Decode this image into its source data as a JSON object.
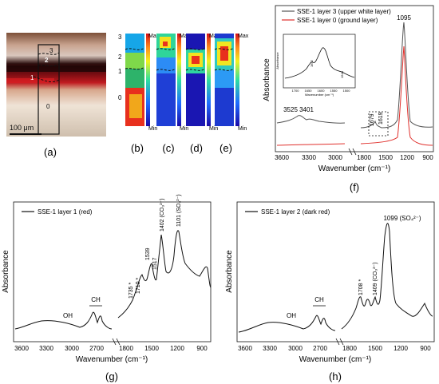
{
  "panels": {
    "a": {
      "label": "(a)",
      "scale_bar": "100 μm",
      "layer_labels": [
        "3",
        "2",
        "1",
        "0"
      ]
    },
    "maps": {
      "labels": [
        "(b)",
        "(c)",
        "(d)",
        "(e)"
      ],
      "max_label": "Max",
      "min_label": "Min",
      "axis_ticks": [
        "3",
        "2",
        "1",
        "0"
      ]
    },
    "f": {
      "label": "(f)"
    },
    "g": {
      "label": "(g)"
    },
    "h": {
      "label": "(h)"
    }
  },
  "chart_data": [
    {
      "id": "f",
      "type": "line",
      "xlabel": "Wavenumber (cm⁻¹)",
      "ylabel": "Absorbance",
      "xticks": [
        "3600",
        "3300",
        "3000",
        "1800",
        "1500",
        "1200",
        "900"
      ],
      "axis_break": [
        2800,
        1900
      ],
      "series": [
        {
          "name": "SSE-1 layer 3 (upper white layer)",
          "color": "#555555"
        },
        {
          "name": "SSE-1 layer 0 (ground layer)",
          "color": "#e0302c"
        }
      ],
      "annotations": [
        "1095",
        "3525",
        "3401",
        "1679",
        "1619"
      ],
      "inset": {
        "ylabel": "Absorbance",
        "xlabel": "Wavenumber (cm⁻¹)",
        "xticks": [
          "1700",
          "1650",
          "1600",
          "1550",
          "1500"
        ],
        "annotations": [
          "1652",
          "1544"
        ]
      }
    },
    {
      "id": "g",
      "type": "line",
      "xlabel": "Wavenumber (cm⁻¹)",
      "ylabel": "Absorbance",
      "xticks": [
        "3600",
        "3300",
        "3000",
        "2700",
        "1800",
        "1500",
        "1200",
        "900"
      ],
      "axis_break": [
        2550,
        1950
      ],
      "series": [
        {
          "name": "SSE-1 layer 1 (red)",
          "color": "#111111"
        }
      ],
      "annotations": [
        "OH",
        "CH",
        "1735 *",
        "1710 *",
        "1539",
        "1517",
        "1402 (CO₃²⁻)",
        "1101 (SO₄²⁻)"
      ]
    },
    {
      "id": "h",
      "type": "line",
      "xlabel": "Wavenumber (cm⁻¹)",
      "ylabel": "Absorbance",
      "xticks": [
        "3600",
        "3300",
        "3000",
        "2700",
        "1800",
        "1500",
        "1200",
        "900"
      ],
      "axis_break": [
        2550,
        1950
      ],
      "series": [
        {
          "name": "SSE-1 layer 2 (dark red)",
          "color": "#111111"
        }
      ],
      "annotations": [
        "OH",
        "CH",
        "1708 *",
        "1409 (CO₃²⁻)",
        "1099 (SO₄²⁻)"
      ]
    }
  ]
}
